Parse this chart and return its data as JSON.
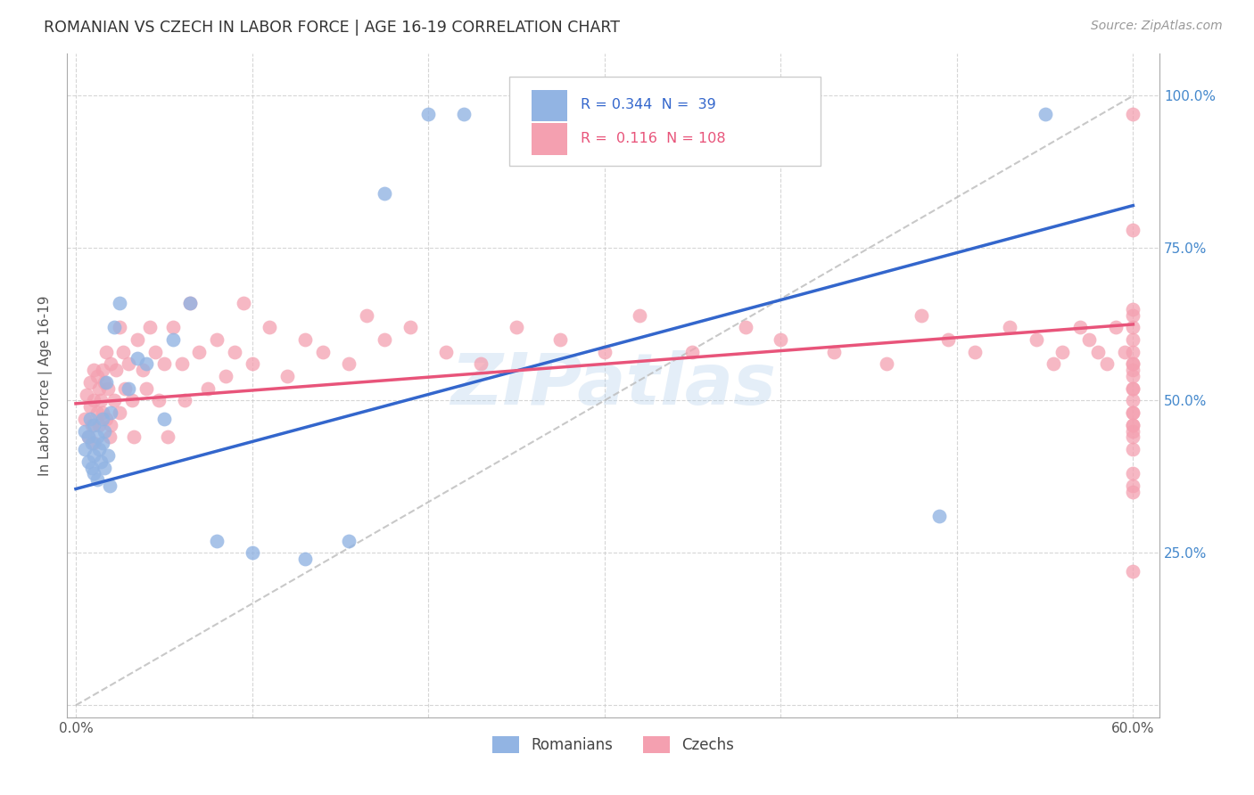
{
  "title": "ROMANIAN VS CZECH IN LABOR FORCE | AGE 16-19 CORRELATION CHART",
  "source": "Source: ZipAtlas.com",
  "ylabel": "In Labor Force | Age 16-19",
  "xlim": [
    0.0,
    0.6
  ],
  "ylim": [
    0.0,
    1.05
  ],
  "legend_r_romanian": "0.344",
  "legend_n_romanian": "39",
  "legend_r_czech": "0.116",
  "legend_n_czech": "108",
  "color_romanian": "#92B4E3",
  "color_czech": "#F4A0B0",
  "color_trend_romanian": "#3366CC",
  "color_trend_czech": "#E8547A",
  "color_diagonal": "#BBBBBB",
  "watermark": "ZIPatlas",
  "trend_rom_x0": 0.0,
  "trend_rom_y0": 0.355,
  "trend_rom_x1": 0.6,
  "trend_rom_y1": 0.82,
  "trend_cz_x0": 0.0,
  "trend_cz_y0": 0.495,
  "trend_cz_x1": 0.6,
  "trend_cz_y1": 0.625,
  "romanians_x": [
    0.005,
    0.005,
    0.007,
    0.007,
    0.008,
    0.009,
    0.009,
    0.01,
    0.01,
    0.01,
    0.012,
    0.012,
    0.013,
    0.014,
    0.015,
    0.015,
    0.016,
    0.016,
    0.017,
    0.018,
    0.019,
    0.02,
    0.022,
    0.025,
    0.03,
    0.035,
    0.04,
    0.05,
    0.055,
    0.065,
    0.08,
    0.1,
    0.13,
    0.155,
    0.175,
    0.2,
    0.22,
    0.49,
    0.55
  ],
  "romanians_y": [
    0.42,
    0.45,
    0.4,
    0.44,
    0.47,
    0.39,
    0.43,
    0.38,
    0.41,
    0.46,
    0.37,
    0.44,
    0.42,
    0.4,
    0.43,
    0.47,
    0.39,
    0.45,
    0.53,
    0.41,
    0.36,
    0.48,
    0.62,
    0.66,
    0.52,
    0.57,
    0.56,
    0.47,
    0.6,
    0.66,
    0.27,
    0.25,
    0.24,
    0.27,
    0.84,
    0.97,
    0.97,
    0.31,
    0.97
  ],
  "czechs_x": [
    0.005,
    0.006,
    0.007,
    0.008,
    0.008,
    0.009,
    0.01,
    0.01,
    0.01,
    0.012,
    0.012,
    0.013,
    0.013,
    0.014,
    0.015,
    0.015,
    0.016,
    0.017,
    0.017,
    0.018,
    0.019,
    0.02,
    0.02,
    0.022,
    0.023,
    0.025,
    0.025,
    0.027,
    0.028,
    0.03,
    0.032,
    0.033,
    0.035,
    0.038,
    0.04,
    0.042,
    0.045,
    0.047,
    0.05,
    0.052,
    0.055,
    0.06,
    0.062,
    0.065,
    0.07,
    0.075,
    0.08,
    0.085,
    0.09,
    0.095,
    0.1,
    0.11,
    0.12,
    0.13,
    0.14,
    0.155,
    0.165,
    0.175,
    0.19,
    0.21,
    0.23,
    0.25,
    0.275,
    0.3,
    0.32,
    0.35,
    0.38,
    0.4,
    0.43,
    0.46,
    0.48,
    0.495,
    0.51,
    0.53,
    0.545,
    0.555,
    0.56,
    0.57,
    0.575,
    0.58,
    0.585,
    0.59,
    0.595,
    0.6,
    0.6,
    0.6,
    0.6,
    0.6,
    0.6,
    0.6,
    0.6,
    0.6,
    0.6,
    0.6,
    0.6,
    0.6,
    0.6,
    0.6,
    0.6,
    0.6,
    0.6,
    0.6,
    0.6,
    0.6,
    0.6,
    0.6,
    0.6,
    0.6
  ],
  "czechs_y": [
    0.47,
    0.51,
    0.44,
    0.49,
    0.53,
    0.46,
    0.43,
    0.5,
    0.55,
    0.48,
    0.54,
    0.46,
    0.52,
    0.5,
    0.48,
    0.55,
    0.53,
    0.47,
    0.58,
    0.52,
    0.44,
    0.46,
    0.56,
    0.5,
    0.55,
    0.62,
    0.48,
    0.58,
    0.52,
    0.56,
    0.5,
    0.44,
    0.6,
    0.55,
    0.52,
    0.62,
    0.58,
    0.5,
    0.56,
    0.44,
    0.62,
    0.56,
    0.5,
    0.66,
    0.58,
    0.52,
    0.6,
    0.54,
    0.58,
    0.66,
    0.56,
    0.62,
    0.54,
    0.6,
    0.58,
    0.56,
    0.64,
    0.6,
    0.62,
    0.58,
    0.56,
    0.62,
    0.6,
    0.58,
    0.64,
    0.58,
    0.62,
    0.6,
    0.58,
    0.56,
    0.64,
    0.6,
    0.58,
    0.62,
    0.6,
    0.56,
    0.58,
    0.62,
    0.6,
    0.58,
    0.56,
    0.62,
    0.58,
    0.97,
    0.78,
    0.65,
    0.44,
    0.36,
    0.5,
    0.55,
    0.46,
    0.58,
    0.52,
    0.62,
    0.48,
    0.56,
    0.42,
    0.64,
    0.54,
    0.35,
    0.22,
    0.48,
    0.38,
    0.45,
    0.52,
    0.6,
    0.56,
    0.46
  ]
}
